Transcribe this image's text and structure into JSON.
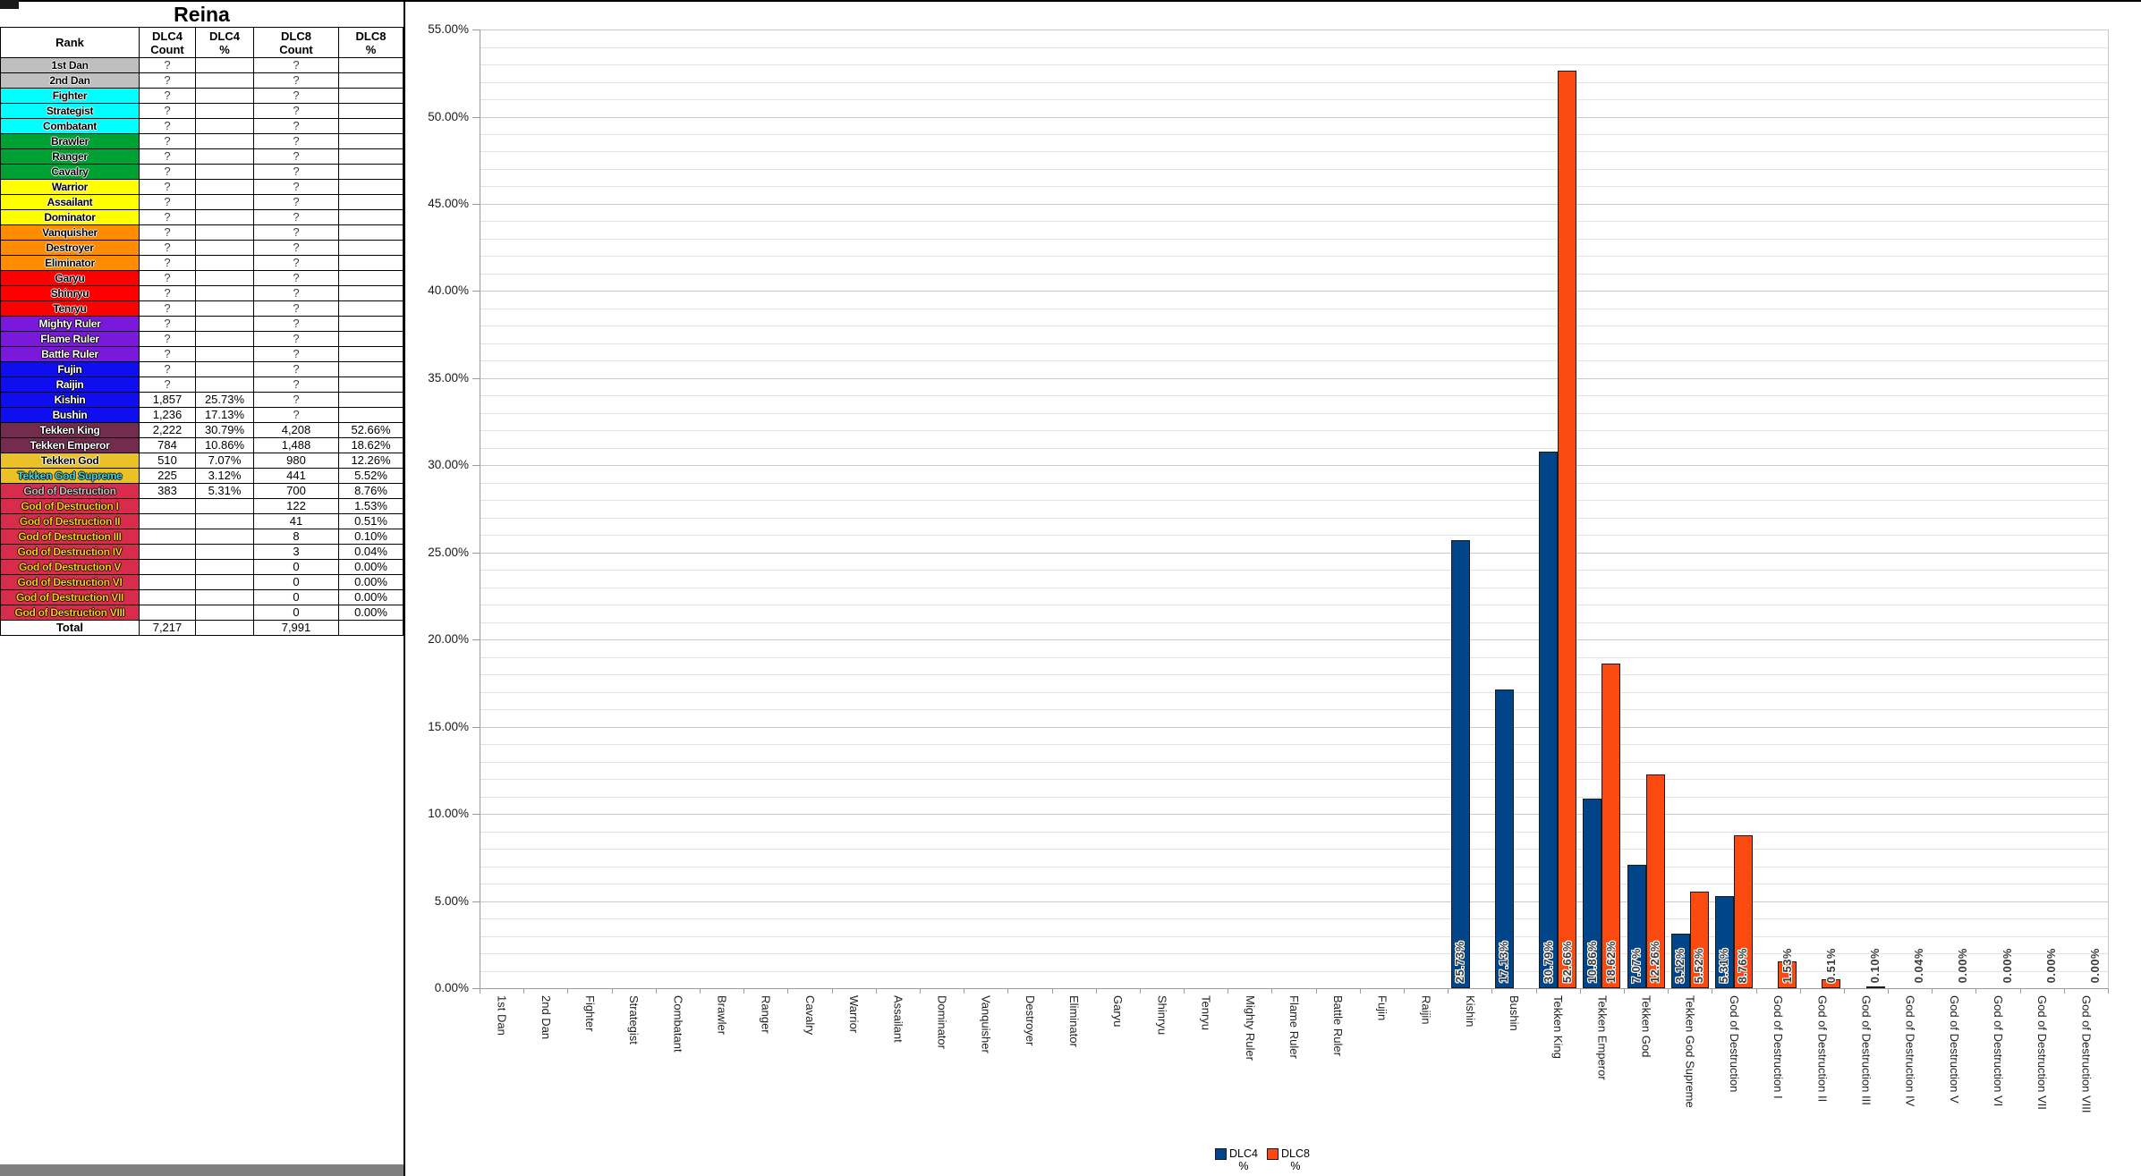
{
  "left_table": {
    "title": "Reina",
    "headers": [
      {
        "l1": "Rank",
        "l2": ""
      },
      {
        "l1": "DLC4",
        "l2": "Count"
      },
      {
        "l1": "DLC4",
        "l2": "%"
      },
      {
        "l1": "DLC8",
        "l2": "Count"
      },
      {
        "l1": "DLC8",
        "l2": "%"
      }
    ],
    "rows": [
      {
        "rank": "1st Dan",
        "dlc4_count": "?",
        "dlc4_pct": "",
        "dlc8_count": "?",
        "dlc8_pct": "",
        "bg": "#BFBFBF",
        "fg": "#000000"
      },
      {
        "rank": "2nd Dan",
        "dlc4_count": "?",
        "dlc4_pct": "",
        "dlc8_count": "?",
        "dlc8_pct": "",
        "bg": "#BFBFBF",
        "fg": "#000000"
      },
      {
        "rank": "Fighter",
        "dlc4_count": "?",
        "dlc4_pct": "",
        "dlc8_count": "?",
        "dlc8_pct": "",
        "bg": "#00FFFF",
        "fg": "#000000"
      },
      {
        "rank": "Strategist",
        "dlc4_count": "?",
        "dlc4_pct": "",
        "dlc8_count": "?",
        "dlc8_pct": "",
        "bg": "#00FFFF",
        "fg": "#000000"
      },
      {
        "rank": "Combatant",
        "dlc4_count": "?",
        "dlc4_pct": "",
        "dlc8_count": "?",
        "dlc8_pct": "",
        "bg": "#00FFFF",
        "fg": "#000000"
      },
      {
        "rank": "Brawler",
        "dlc4_count": "?",
        "dlc4_pct": "",
        "dlc8_count": "?",
        "dlc8_pct": "",
        "bg": "#00A133",
        "fg": "#000000"
      },
      {
        "rank": "Ranger",
        "dlc4_count": "?",
        "dlc4_pct": "",
        "dlc8_count": "?",
        "dlc8_pct": "",
        "bg": "#00A133",
        "fg": "#000000"
      },
      {
        "rank": "Cavalry",
        "dlc4_count": "?",
        "dlc4_pct": "",
        "dlc8_count": "?",
        "dlc8_pct": "",
        "bg": "#00A133",
        "fg": "#000000"
      },
      {
        "rank": "Warrior",
        "dlc4_count": "?",
        "dlc4_pct": "",
        "dlc8_count": "?",
        "dlc8_pct": "",
        "bg": "#FFFF00",
        "fg": "#000000"
      },
      {
        "rank": "Assailant",
        "dlc4_count": "?",
        "dlc4_pct": "",
        "dlc8_count": "?",
        "dlc8_pct": "",
        "bg": "#FFFF00",
        "fg": "#000000"
      },
      {
        "rank": "Dominator",
        "dlc4_count": "?",
        "dlc4_pct": "",
        "dlc8_count": "?",
        "dlc8_pct": "",
        "bg": "#FFFF00",
        "fg": "#000000"
      },
      {
        "rank": "Vanquisher",
        "dlc4_count": "?",
        "dlc4_pct": "",
        "dlc8_count": "?",
        "dlc8_pct": "",
        "bg": "#FF8C00",
        "fg": "#000000"
      },
      {
        "rank": "Destroyer",
        "dlc4_count": "?",
        "dlc4_pct": "",
        "dlc8_count": "?",
        "dlc8_pct": "",
        "bg": "#FF8C00",
        "fg": "#000000"
      },
      {
        "rank": "Eliminator",
        "dlc4_count": "?",
        "dlc4_pct": "",
        "dlc8_count": "?",
        "dlc8_pct": "",
        "bg": "#FF8C00",
        "fg": "#000000"
      },
      {
        "rank": "Garyu",
        "dlc4_count": "?",
        "dlc4_pct": "",
        "dlc8_count": "?",
        "dlc8_pct": "",
        "bg": "#FF0000",
        "fg": "#000000"
      },
      {
        "rank": "Shinryu",
        "dlc4_count": "?",
        "dlc4_pct": "",
        "dlc8_count": "?",
        "dlc8_pct": "",
        "bg": "#FF0000",
        "fg": "#000000"
      },
      {
        "rank": "Tenryu",
        "dlc4_count": "?",
        "dlc4_pct": "",
        "dlc8_count": "?",
        "dlc8_pct": "",
        "bg": "#FF0000",
        "fg": "#000000"
      },
      {
        "rank": "Mighty Ruler",
        "dlc4_count": "?",
        "dlc4_pct": "",
        "dlc8_count": "?",
        "dlc8_pct": "",
        "bg": "#7A18DB",
        "fg": "#FFFFFF"
      },
      {
        "rank": "Flame Ruler",
        "dlc4_count": "?",
        "dlc4_pct": "",
        "dlc8_count": "?",
        "dlc8_pct": "",
        "bg": "#7A18DB",
        "fg": "#FFFFFF"
      },
      {
        "rank": "Battle Ruler",
        "dlc4_count": "?",
        "dlc4_pct": "",
        "dlc8_count": "?",
        "dlc8_pct": "",
        "bg": "#7A18DB",
        "fg": "#FFFFFF"
      },
      {
        "rank": "Fujin",
        "dlc4_count": "?",
        "dlc4_pct": "",
        "dlc8_count": "?",
        "dlc8_pct": "",
        "bg": "#0E0EF0",
        "fg": "#FFFFFF"
      },
      {
        "rank": "Raijin",
        "dlc4_count": "?",
        "dlc4_pct": "",
        "dlc8_count": "?",
        "dlc8_pct": "",
        "bg": "#0E0EF0",
        "fg": "#FFFFFF"
      },
      {
        "rank": "Kishin",
        "dlc4_count": "1,857",
        "dlc4_pct": "25.73%",
        "dlc8_count": "?",
        "dlc8_pct": "",
        "bg": "#0E0EF0",
        "fg": "#FFFFFF"
      },
      {
        "rank": "Bushin",
        "dlc4_count": "1,236",
        "dlc4_pct": "17.13%",
        "dlc8_count": "?",
        "dlc8_pct": "",
        "bg": "#0E0EF0",
        "fg": "#FFFFFF"
      },
      {
        "rank": "Tekken King",
        "dlc4_count": "2,222",
        "dlc4_pct": "30.79%",
        "dlc8_count": "4,208",
        "dlc8_pct": "52.66%",
        "bg": "#732C4D",
        "fg": "#FFFFFF"
      },
      {
        "rank": "Tekken Emperor",
        "dlc4_count": "784",
        "dlc4_pct": "10.86%",
        "dlc8_count": "1,488",
        "dlc8_pct": "18.62%",
        "bg": "#732C4D",
        "fg": "#FFFFFF"
      },
      {
        "rank": "Tekken God",
        "dlc4_count": "510",
        "dlc4_pct": "7.07%",
        "dlc8_count": "980",
        "dlc8_pct": "12.26%",
        "bg": "#EAC228",
        "fg": "#000000"
      },
      {
        "rank": "Tekken God Supreme",
        "dlc4_count": "225",
        "dlc4_pct": "3.12%",
        "dlc8_count": "441",
        "dlc8_pct": "5.52%",
        "bg": "#EAC228",
        "fg": "#45D5EA"
      },
      {
        "rank": "God of Destruction",
        "dlc4_count": "383",
        "dlc4_pct": "5.31%",
        "dlc8_count": "700",
        "dlc8_pct": "8.76%",
        "bg": "#D92B4B",
        "fg": "#C0C0C0"
      },
      {
        "rank": "God of Destruction I",
        "dlc4_count": "",
        "dlc4_pct": "",
        "dlc8_count": "122",
        "dlc8_pct": "1.53%",
        "bg": "#D92B4B",
        "fg": "#FCCB1B"
      },
      {
        "rank": "God of Destruction II",
        "dlc4_count": "",
        "dlc4_pct": "",
        "dlc8_count": "41",
        "dlc8_pct": "0.51%",
        "bg": "#D92B4B",
        "fg": "#FCCB1B"
      },
      {
        "rank": "God of Destruction III",
        "dlc4_count": "",
        "dlc4_pct": "",
        "dlc8_count": "8",
        "dlc8_pct": "0.10%",
        "bg": "#D92B4B",
        "fg": "#FCCB1B"
      },
      {
        "rank": "God of Destruction IV",
        "dlc4_count": "",
        "dlc4_pct": "",
        "dlc8_count": "3",
        "dlc8_pct": "0.04%",
        "bg": "#D92B4B",
        "fg": "#FCCB1B"
      },
      {
        "rank": "God of Destruction V",
        "dlc4_count": "",
        "dlc4_pct": "",
        "dlc8_count": "0",
        "dlc8_pct": "0.00%",
        "bg": "#D92B4B",
        "fg": "#FCCB1B"
      },
      {
        "rank": "God of Destruction VI",
        "dlc4_count": "",
        "dlc4_pct": "",
        "dlc8_count": "0",
        "dlc8_pct": "0.00%",
        "bg": "#D92B4B",
        "fg": "#FCCB1B"
      },
      {
        "rank": "God of Destruction VII",
        "dlc4_count": "",
        "dlc4_pct": "",
        "dlc8_count": "0",
        "dlc8_pct": "0.00%",
        "bg": "#D92B4B",
        "fg": "#FCCB1B"
      },
      {
        "rank": "God of Destruction VIII",
        "dlc4_count": "",
        "dlc4_pct": "",
        "dlc8_count": "0",
        "dlc8_pct": "0.00%",
        "bg": "#D92B4B",
        "fg": "#FCCB1B"
      }
    ],
    "total": {
      "label": "Total",
      "dlc4_count": "7,217",
      "dlc4_pct": "",
      "dlc8_count": "7,991",
      "dlc8_pct": ""
    }
  },
  "chart_data": {
    "type": "bar",
    "title": "",
    "xlabel": "",
    "ylabel": "",
    "ylim": [
      0,
      55
    ],
    "y_major_step": 5,
    "y_minor_step": 1,
    "grid": true,
    "legend_position": "bottom",
    "y_tick_labels": [
      "0.00%",
      "5.00%",
      "10.00%",
      "15.00%",
      "20.00%",
      "25.00%",
      "30.00%",
      "35.00%",
      "40.00%",
      "45.00%",
      "50.00%",
      "55.00%"
    ],
    "categories": [
      "1st Dan",
      "2nd Dan",
      "Fighter",
      "Strategist",
      "Combatant",
      "Brawler",
      "Ranger",
      "Cavalry",
      "Warrior",
      "Assailant",
      "Dominator",
      "Vanquisher",
      "Destroyer",
      "Eliminator",
      "Garyu",
      "Shinryu",
      "Tenryu",
      "Mighty Ruler",
      "Flame Ruler",
      "Battle Ruler",
      "Fujin",
      "Raijin",
      "Kishin",
      "Bushin",
      "Tekken King",
      "Tekken Emperor",
      "Tekken God",
      "Tekken God Supreme",
      "God of Destruction",
      "God of Destruction I",
      "God of Destruction II",
      "God of Destruction III",
      "God of Destruction IV",
      "God of Destruction V",
      "God of Destruction VI",
      "God of Destruction VII",
      "God of Destruction VIII"
    ],
    "series": [
      {
        "name": "DLC4 %",
        "legend_line1": "DLC4",
        "legend_line2": "%",
        "color": "#004589",
        "values": [
          null,
          null,
          null,
          null,
          null,
          null,
          null,
          null,
          null,
          null,
          null,
          null,
          null,
          null,
          null,
          null,
          null,
          null,
          null,
          null,
          null,
          null,
          25.73,
          17.13,
          30.79,
          10.86,
          7.07,
          3.12,
          5.31,
          null,
          null,
          null,
          null,
          null,
          null,
          null,
          null
        ],
        "labels": [
          null,
          null,
          null,
          null,
          null,
          null,
          null,
          null,
          null,
          null,
          null,
          null,
          null,
          null,
          null,
          null,
          null,
          null,
          null,
          null,
          null,
          null,
          "25.73%",
          "17.13%",
          "30.79%",
          "10.86%",
          "7.07%",
          "3.12%",
          "5.31%",
          null,
          null,
          null,
          null,
          null,
          null,
          null,
          null
        ]
      },
      {
        "name": "DLC8 %",
        "legend_line1": "DLC8",
        "legend_line2": "%",
        "color": "#FB4A0F",
        "values": [
          null,
          null,
          null,
          null,
          null,
          null,
          null,
          null,
          null,
          null,
          null,
          null,
          null,
          null,
          null,
          null,
          null,
          null,
          null,
          null,
          null,
          null,
          null,
          null,
          52.66,
          18.62,
          12.26,
          5.52,
          8.76,
          1.53,
          0.51,
          0.1,
          0.04,
          0,
          0,
          0,
          0
        ],
        "labels": [
          null,
          null,
          null,
          null,
          null,
          null,
          null,
          null,
          null,
          null,
          null,
          null,
          null,
          null,
          null,
          null,
          null,
          null,
          null,
          null,
          null,
          null,
          null,
          null,
          "52.66%",
          "18.62%",
          "12.26%",
          "5.52%",
          "8.76%",
          "1.53%",
          "0.51%",
          "0.10%",
          "0.04%",
          "0.00%",
          "0.00%",
          "0.00%",
          "0.00%"
        ]
      }
    ]
  }
}
